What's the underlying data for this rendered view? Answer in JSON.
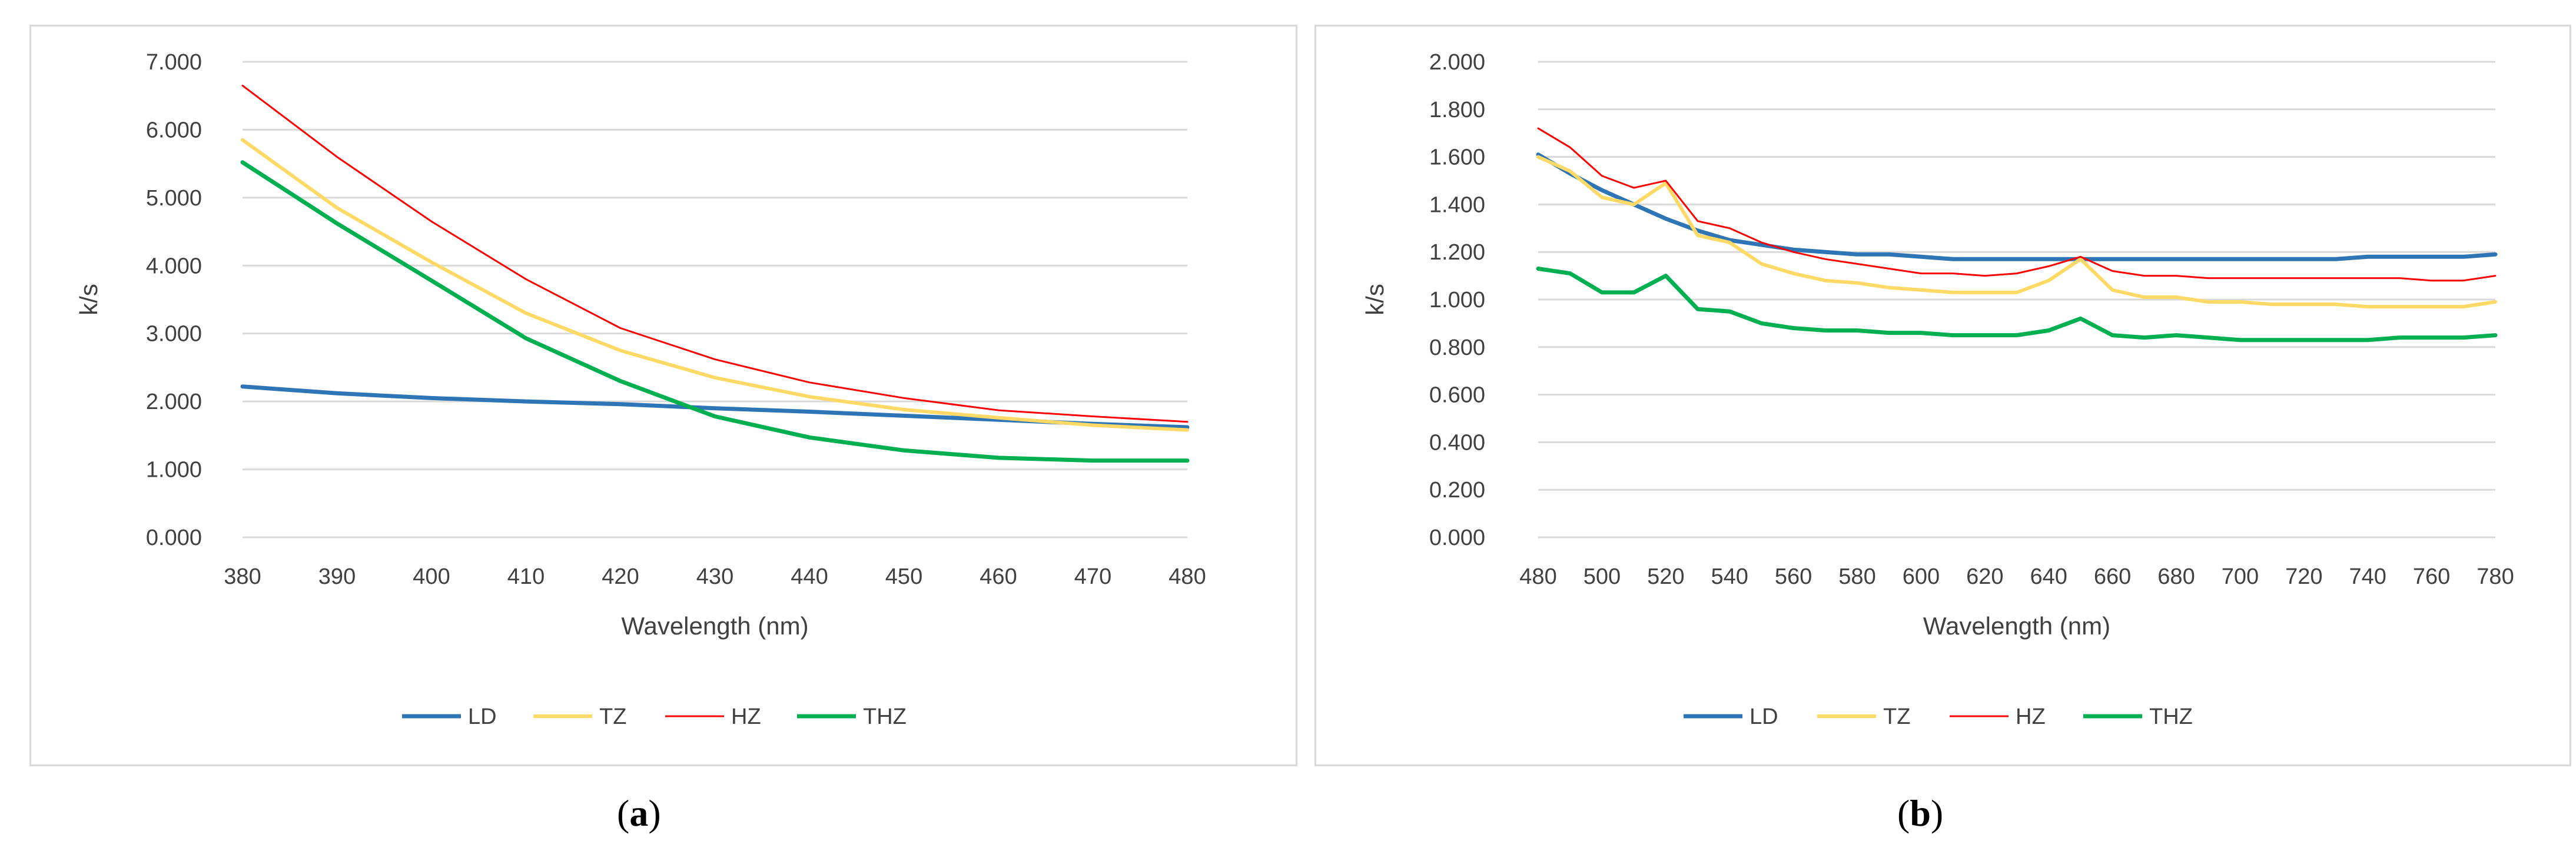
{
  "chart_data": [
    {
      "panel_label": "a",
      "type": "line",
      "title": "",
      "xlabel": "Wavelength (nm)",
      "ylabel": "k/s",
      "ylim": [
        0,
        7
      ],
      "y_ticks": [
        "0.000",
        "1.000",
        "2.000",
        "3.000",
        "4.000",
        "5.000",
        "6.000",
        "7.000"
      ],
      "x_ticks": [
        "380",
        "390",
        "400",
        "410",
        "420",
        "430",
        "440",
        "450",
        "460",
        "470",
        "480"
      ],
      "x": [
        380,
        390,
        400,
        410,
        420,
        430,
        440,
        450,
        460,
        470,
        480
      ],
      "grid": true,
      "legend_position": "bottom",
      "series": [
        {
          "name": "LD",
          "color": "#2e75b6",
          "width": 7,
          "values": [
            2.22,
            2.12,
            2.05,
            2.0,
            1.96,
            1.9,
            1.85,
            1.79,
            1.73,
            1.67,
            1.62
          ]
        },
        {
          "name": "TZ",
          "color": "#ffd966",
          "width": 6,
          "values": [
            5.85,
            4.85,
            4.05,
            3.3,
            2.75,
            2.35,
            2.07,
            1.88,
            1.76,
            1.65,
            1.58
          ]
        },
        {
          "name": "HZ",
          "color": "#ff0000",
          "width": 3,
          "values": [
            6.65,
            5.6,
            4.65,
            3.8,
            3.08,
            2.62,
            2.28,
            2.05,
            1.87,
            1.78,
            1.7
          ]
        },
        {
          "name": "THZ",
          "color": "#00b050",
          "width": 7,
          "values": [
            5.52,
            4.62,
            3.78,
            2.93,
            2.3,
            1.78,
            1.47,
            1.28,
            1.17,
            1.13,
            1.13
          ]
        }
      ]
    },
    {
      "panel_label": "b",
      "type": "line",
      "title": "",
      "xlabel": "Wavelength (nm)",
      "ylabel": "k/s",
      "ylim": [
        0,
        2
      ],
      "y_ticks": [
        "0.000",
        "0.200",
        "0.400",
        "0.600",
        "0.800",
        "1.000",
        "1.200",
        "1.400",
        "1.600",
        "1.800",
        "2.000"
      ],
      "x_ticks": [
        "480",
        "500",
        "520",
        "540",
        "560",
        "580",
        "600",
        "620",
        "640",
        "660",
        "680",
        "700",
        "720",
        "740",
        "760",
        "780"
      ],
      "x": [
        480,
        490,
        500,
        510,
        520,
        530,
        540,
        550,
        560,
        570,
        580,
        590,
        600,
        610,
        620,
        630,
        640,
        650,
        660,
        670,
        680,
        690,
        700,
        710,
        720,
        730,
        740,
        750,
        760,
        770,
        780
      ],
      "grid": true,
      "legend_position": "bottom",
      "series": [
        {
          "name": "LD",
          "color": "#2e75b6",
          "width": 7,
          "values": [
            1.61,
            1.53,
            1.46,
            1.4,
            1.34,
            1.29,
            1.25,
            1.23,
            1.21,
            1.2,
            1.19,
            1.19,
            1.18,
            1.17,
            1.17,
            1.17,
            1.17,
            1.17,
            1.17,
            1.17,
            1.17,
            1.17,
            1.17,
            1.17,
            1.17,
            1.17,
            1.18,
            1.18,
            1.18,
            1.18,
            1.19
          ]
        },
        {
          "name": "TZ",
          "color": "#ffd966",
          "width": 6,
          "values": [
            1.6,
            1.54,
            1.43,
            1.4,
            1.49,
            1.27,
            1.24,
            1.15,
            1.11,
            1.08,
            1.07,
            1.05,
            1.04,
            1.03,
            1.03,
            1.03,
            1.08,
            1.17,
            1.04,
            1.01,
            1.01,
            0.99,
            0.99,
            0.98,
            0.98,
            0.98,
            0.97,
            0.97,
            0.97,
            0.97,
            0.99
          ]
        },
        {
          "name": "HZ",
          "color": "#ff0000",
          "width": 3,
          "values": [
            1.72,
            1.64,
            1.52,
            1.47,
            1.5,
            1.33,
            1.3,
            1.24,
            1.2,
            1.17,
            1.15,
            1.13,
            1.11,
            1.11,
            1.1,
            1.11,
            1.14,
            1.18,
            1.12,
            1.1,
            1.1,
            1.09,
            1.09,
            1.09,
            1.09,
            1.09,
            1.09,
            1.09,
            1.08,
            1.08,
            1.1
          ]
        },
        {
          "name": "THZ",
          "color": "#00b050",
          "width": 7,
          "values": [
            1.13,
            1.11,
            1.03,
            1.03,
            1.1,
            0.96,
            0.95,
            0.9,
            0.88,
            0.87,
            0.87,
            0.86,
            0.86,
            0.85,
            0.85,
            0.85,
            0.87,
            0.92,
            0.85,
            0.84,
            0.85,
            0.84,
            0.83,
            0.83,
            0.83,
            0.83,
            0.83,
            0.84,
            0.84,
            0.84,
            0.85
          ]
        }
      ]
    }
  ],
  "colors": {
    "grid": "#d9d9d9",
    "text": "#404040",
    "frame": "#d9d9d9"
  }
}
